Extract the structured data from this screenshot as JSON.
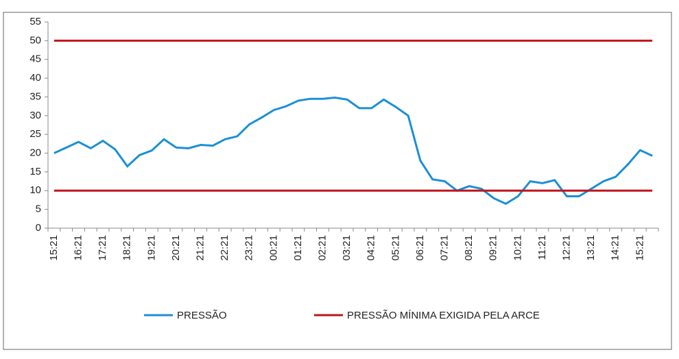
{
  "chart_data": {
    "type": "line",
    "categories": [
      "15:21",
      null,
      "16:21",
      null,
      "17:21",
      null,
      "18:21",
      null,
      "19:21",
      null,
      "20:21",
      null,
      "21:21",
      null,
      "22:21",
      null,
      "23:21",
      null,
      "00:21",
      null,
      "01:21",
      null,
      "02:21",
      null,
      "03:21",
      null,
      "04:21",
      null,
      "05:21",
      null,
      "06:21",
      null,
      "07:21",
      null,
      "08:21",
      null,
      "09:21",
      null,
      "10:21",
      null,
      "11:21",
      null,
      "12:21",
      null,
      "13:21",
      null,
      "14:21",
      null,
      "15:21",
      null
    ],
    "series": [
      {
        "name": "PRESSÃO",
        "color": "#1b8fd6",
        "values": [
          20,
          21.5,
          23,
          21.3,
          23.3,
          21,
          16.5,
          19.5,
          20.7,
          23.7,
          21.5,
          21.3,
          22.2,
          22,
          23.7,
          24.5,
          27.7,
          29.5,
          31.5,
          32.5,
          34,
          34.5,
          34.5,
          34.8,
          34.3,
          32,
          32,
          34.3,
          32.3,
          30,
          18,
          13,
          12.5,
          10,
          11.2,
          10.5,
          8,
          6.5,
          8.5,
          12.5,
          12,
          12.8,
          8.5,
          8.5,
          10.5,
          12.5,
          13.7,
          17,
          20.8,
          19.3
        ]
      },
      {
        "name": "PRESSÃO MÍNIMA EXIGIDA PELA ARCE",
        "color": "#c0141c",
        "values": [
          10,
          10,
          10,
          10,
          10,
          10,
          10,
          10,
          10,
          10,
          10,
          10,
          10,
          10,
          10,
          10,
          10,
          10,
          10,
          10,
          10,
          10,
          10,
          10,
          10,
          10,
          10,
          10,
          10,
          10,
          10,
          10,
          10,
          10,
          10,
          10,
          10,
          10,
          10,
          10,
          10,
          10,
          10,
          10,
          10,
          10,
          10,
          10,
          10,
          10
        ]
      },
      {
        "color": "#c0141c",
        "values": [
          50,
          50,
          50,
          50,
          50,
          50,
          50,
          50,
          50,
          50,
          50,
          50,
          50,
          50,
          50,
          50,
          50,
          50,
          50,
          50,
          50,
          50,
          50,
          50,
          50,
          50,
          50,
          50,
          50,
          50,
          50,
          50,
          50,
          50,
          50,
          50,
          50,
          50,
          50,
          50,
          50,
          50,
          50,
          50,
          50,
          50,
          50,
          50,
          50,
          50
        ]
      }
    ],
    "ylim": [
      0,
      55
    ],
    "yticks": [
      0,
      5,
      10,
      15,
      20,
      25,
      30,
      35,
      40,
      45,
      50,
      55
    ],
    "legend": "bottom"
  }
}
